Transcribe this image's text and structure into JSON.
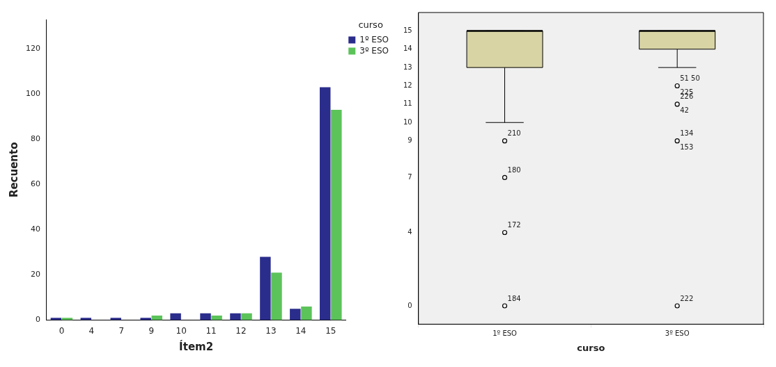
{
  "chart_data": [
    {
      "type": "bar",
      "xlabel": "Ítem2",
      "ylabel": "Recuento",
      "legend_title": "curso",
      "legend": "top right",
      "categories": [
        "0",
        "4",
        "7",
        "9",
        "10",
        "11",
        "12",
        "13",
        "14",
        "15"
      ],
      "series": [
        {
          "name": "1º ESO",
          "color": "#2b2d8c",
          "values": [
            1,
            1,
            1,
            1,
            3,
            3,
            3,
            28,
            5,
            103
          ]
        },
        {
          "name": "3º ESO",
          "color": "#5cc35a",
          "values": [
            1,
            0,
            0,
            2,
            0,
            2,
            3,
            21,
            6,
            93
          ]
        }
      ],
      "ylim": [
        0,
        133
      ],
      "yticks": [
        0,
        20,
        40,
        60,
        80,
        100,
        120
      ],
      "grid": false
    },
    {
      "type": "box",
      "xlabel": "curso",
      "categories": [
        "1º ESO",
        "3º ESO"
      ],
      "series": [
        {
          "color": "#d8d4a4",
          "boxes": [
            {
              "low": 10,
              "q1": 13,
              "median": 15,
              "q3": 15,
              "high": 15
            },
            {
              "low": 13,
              "q1": 14,
              "median": 15,
              "q3": 15,
              "high": 15
            }
          ]
        },
        {
          "type": "scatter",
          "color": "#000000",
          "marker": "circle",
          "x": [
            "1º ESO",
            "1º ESO",
            "1º ESO",
            "1º ESO",
            "3º ESO",
            "3º ESO",
            "3º ESO",
            "3º ESO"
          ],
          "values": [
            9,
            7,
            4,
            0,
            12,
            11,
            9,
            0
          ]
        }
      ],
      "ylim": [
        -1,
        16
      ],
      "yticks": [
        0,
        4,
        7,
        9,
        10,
        11,
        12,
        13,
        14,
        15
      ],
      "grid": false,
      "annotations": [
        {
          "text": "210",
          "x": "1º ESO",
          "y": 9
        },
        {
          "text": "180",
          "x": "1º ESO",
          "y": 7
        },
        {
          "text": "172",
          "x": "1º ESO",
          "y": 4
        },
        {
          "text": "184",
          "x": "1º ESO",
          "y": 0
        },
        {
          "text": "51 50",
          "x": "3º ESO",
          "y": 12
        },
        {
          "text": "225",
          "x": "3º ESO",
          "y": 12
        },
        {
          "text": "226",
          "x": "3º ESO",
          "y": 11
        },
        {
          "text": "42",
          "x": "3º ESO",
          "y": 11
        },
        {
          "text": "134",
          "x": "3º ESO",
          "y": 9
        },
        {
          "text": "153",
          "x": "3º ESO",
          "y": 9
        },
        {
          "text": "222",
          "x": "3º ESO",
          "y": 0
        }
      ]
    }
  ]
}
